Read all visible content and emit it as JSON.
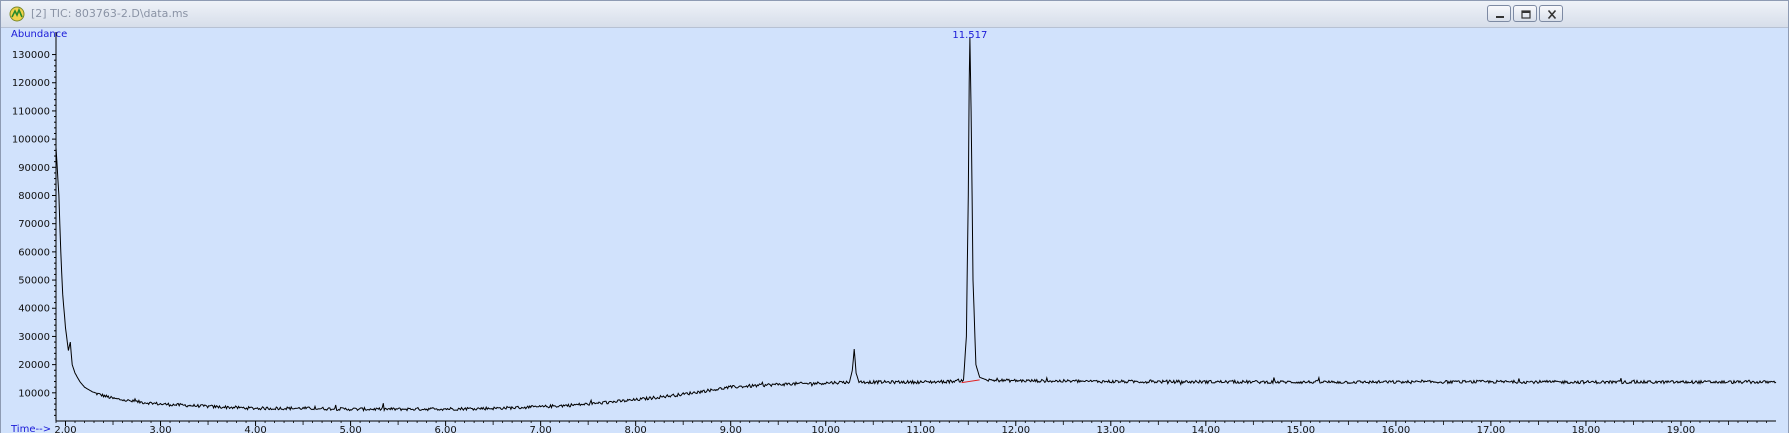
{
  "window": {
    "title": "[2] TIC: 803763-2.D\\data.ms",
    "minimize_icon": "minimize-icon",
    "restore_icon": "restore-icon",
    "close_icon": "close-icon"
  },
  "colors": {
    "plot_background": "#d1e2fc",
    "trace": "#000000",
    "axis_labels": "#1a1ad8",
    "baseline_marker": "#e02020"
  },
  "chart_data": {
    "type": "line",
    "title": "",
    "xlabel": "Time-->",
    "ylabel": "Abundance",
    "xlim": [
      1.9,
      20.0
    ],
    "ylim": [
      0,
      138000
    ],
    "x_ticks": [
      "2.00",
      "3.00",
      "4.00",
      "5.00",
      "6.00",
      "7.00",
      "8.00",
      "9.00",
      "10.00",
      "11.00",
      "12.00",
      "13.00",
      "14.00",
      "15.00",
      "16.00",
      "17.00",
      "18.00",
      "19.00"
    ],
    "y_ticks": [
      "10000",
      "20000",
      "30000",
      "40000",
      "50000",
      "60000",
      "70000",
      "80000",
      "90000",
      "100000",
      "110000",
      "120000",
      "130000"
    ],
    "grid": false,
    "series": [
      {
        "name": "",
        "x": [
          1.9,
          1.93,
          1.95,
          1.97,
          2.0,
          2.03,
          2.05,
          2.07,
          2.1,
          2.15,
          2.2,
          2.3,
          2.4,
          2.5,
          2.7,
          3.0,
          3.3,
          3.6,
          4.0,
          4.5,
          5.0,
          5.5,
          6.0,
          6.5,
          7.0,
          7.5,
          8.0,
          8.5,
          9.0,
          9.5,
          10.0,
          10.25,
          10.28,
          10.3,
          10.32,
          10.35,
          10.6,
          11.0,
          11.3,
          11.45,
          11.48,
          11.5,
          11.51,
          11.517,
          11.53,
          11.55,
          11.58,
          11.62,
          11.7,
          12.0,
          13.0,
          14.0,
          15.0,
          16.0,
          17.0,
          18.0,
          19.0,
          20.0
        ],
        "y": [
          97000,
          80000,
          60000,
          45000,
          33000,
          25000,
          28000,
          20000,
          17000,
          14000,
          12000,
          10000,
          9000,
          8000,
          7000,
          6000,
          5500,
          5000,
          4500,
          4500,
          4200,
          4200,
          4300,
          4500,
          5000,
          6000,
          7500,
          9500,
          12000,
          13000,
          13500,
          13800,
          18000,
          25500,
          17000,
          13800,
          13800,
          13800,
          14000,
          14500,
          30000,
          80000,
          120000,
          136000,
          110000,
          50000,
          20000,
          15500,
          14500,
          14300,
          14000,
          13900,
          13800,
          13800,
          13900,
          13800,
          13800,
          13800
        ]
      }
    ],
    "annotations": [
      {
        "text": "11.517",
        "x": 11.517
      }
    ]
  }
}
